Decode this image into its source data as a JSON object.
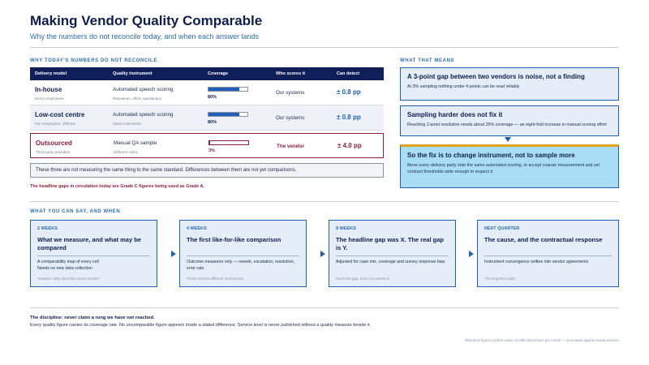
{
  "header": {
    "title": "Making Vendor Quality Comparable",
    "subtitle": "Why the numbers do not reconcile today, and when each answer lands"
  },
  "sections": {
    "left": "WHY TODAY'S NUMBERS DO NOT RECONCILE",
    "right": "WHAT THAT MEANS",
    "timeline": "WHAT YOU CAN SAY, AND WHEN"
  },
  "table": {
    "columns": [
      "Delivery model",
      "Quality instrument",
      "Coverage",
      "Who scores it",
      "Can detect"
    ],
    "rows": [
      {
        "model": "In-house",
        "model_sub": "Direct employees",
        "instrument": "Automated speech scoring",
        "instrument_sub": "Resolution, effort, satisfaction",
        "coverage": "80%",
        "coverage_value": 0.8,
        "scorer": "Our systems",
        "detect": "± 0.8 pp"
      },
      {
        "model": "Low-cost centre",
        "model_sub": "Our employees, offshore",
        "instrument": "Automated speech scoring",
        "instrument_sub": "Same instrument",
        "coverage": "80%",
        "coverage_value": 0.8,
        "scorer": "Our systems",
        "detect": "± 0.8 pp"
      },
      {
        "model": "Outsourced",
        "model_sub": "Third-party providers",
        "instrument": "Manual QA sample",
        "instrument_sub": "Different rubric",
        "coverage": "3%",
        "coverage_value": 0.03,
        "scorer": "The vendor",
        "detect": "± 4.0 pp"
      }
    ],
    "note": "These three are not measuring the same thing to the same standard. Differences between them are not yet comparisons.",
    "warning": "The headline gaps in circulation today are Grade C figures being used as Grade A."
  },
  "meaning": [
    {
      "heading": "A 3-point gap between two vendors is noise, not a finding",
      "body": "At 3% sampling nothing under 4 points can be read reliably"
    },
    {
      "heading": "Sampling harder does not fix it",
      "body": "Reaching 2-point resolution needs about 25% coverage — an eight-fold increase in manual scoring effort"
    },
    {
      "heading": "So the fix is to change instrument, not to sample more",
      "body": "Move every delivery party onto the same automated scoring, or accept coarser measurement and set contract thresholds wide enough to respect it"
    }
  ],
  "timeline": [
    {
      "period": "2 WEEKS",
      "heading": "What we measure, and what may be compared",
      "body": "A comparability map of every cell\nNeeds no new data collection",
      "foot": "Answers \"why does this never resolve\""
    },
    {
      "period": "4 WEEKS",
      "heading": "The first like-for-like comparison",
      "body": "Outcome measures only — rework, escalation, resolution, error rate",
      "foot": "These survive different instruments"
    },
    {
      "period": "8 WEEKS",
      "heading": "The headline gap was X. The real gap is Y.",
      "body": "Adjusted for case mix, coverage and survey response bias",
      "foot": "Sizes the gap; does not assess it"
    },
    {
      "period": "NEXT QUARTER",
      "heading": "The cause, and the contractual response",
      "body": "Instrument convergence written into vendor agreements",
      "foot": "The long-term path"
    }
  ],
  "discipline": {
    "heading": "The discipline: never claim a rung we have not reached.",
    "body": "Every quality figure carries its coverage rate. No uncomparable figure appears inside a stated difference. Service level is never published without a quality measure beside it."
  },
  "footnote": "Illustrative figures at 80% scale; 20,000 interactions per month — recompute against actual volumes",
  "colors": {
    "navy": "#0f1f5a",
    "accent": "#1f5fb8",
    "alert": "#8c1f3f",
    "highlight": "#a9ddf5",
    "gold": "#e2a21b"
  }
}
